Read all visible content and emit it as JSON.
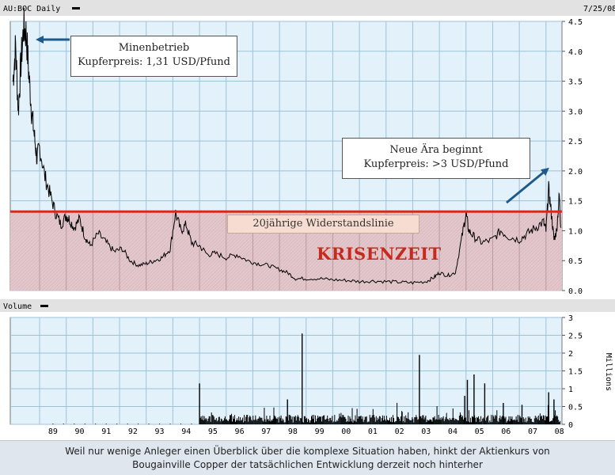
{
  "price_header": {
    "symbol": "AU:BOC Daily",
    "date": "7/25/08"
  },
  "volume_header": {
    "label": "Volume"
  },
  "chart_data": [
    {
      "type": "line",
      "ylim": [
        0,
        4.5
      ],
      "yticks": [
        "4.5",
        "4.0",
        "3.5",
        "3.0",
        "2.5",
        "2.0",
        "1.5",
        "1.0",
        "0.5",
        "0.0"
      ],
      "x": [
        1988.0,
        1988.1,
        1988.2,
        1988.3,
        1988.4,
        1988.5,
        1988.6,
        1988.7,
        1988.8,
        1988.9,
        1989.0,
        1989.2,
        1989.4,
        1989.6,
        1989.8,
        1990.0,
        1990.1,
        1990.3,
        1990.5,
        1990.7,
        1990.9,
        1991.2,
        1991.5,
        1991.8,
        1992.1,
        1992.4,
        1992.7,
        1993.0,
        1993.3,
        1993.6,
        1993.9,
        1994.1,
        1994.3,
        1994.5,
        1994.7,
        1995.0,
        1995.3,
        1995.6,
        1996.0,
        1996.4,
        1996.8,
        1997.2,
        1997.6,
        1998.0,
        1998.3,
        1998.6,
        1999.0,
        1999.5,
        2000.0,
        2000.5,
        2001.0,
        2001.5,
        2002.0,
        2002.5,
        2003.0,
        2003.5,
        2003.8,
        2004.0,
        2004.3,
        2004.6,
        2004.85,
        2005.0,
        2005.1,
        2005.3,
        2005.6,
        2006.0,
        2006.3,
        2006.6,
        2007.0,
        2007.3,
        2007.6,
        2007.9,
        2008.0,
        2008.1,
        2008.2,
        2008.3,
        2008.4,
        2008.5,
        2008.56
      ],
      "y": [
        3.5,
        4.1,
        3.0,
        3.8,
        4.4,
        4.3,
        3.6,
        3.0,
        2.6,
        2.2,
        2.4,
        1.9,
        1.6,
        1.3,
        1.1,
        1.25,
        1.2,
        1.05,
        1.2,
        0.9,
        0.75,
        0.95,
        0.8,
        0.65,
        0.7,
        0.5,
        0.42,
        0.45,
        0.5,
        0.55,
        0.7,
        1.3,
        1.0,
        1.1,
        0.8,
        0.75,
        0.6,
        0.62,
        0.55,
        0.6,
        0.5,
        0.45,
        0.42,
        0.35,
        0.3,
        0.2,
        0.2,
        0.2,
        0.18,
        0.17,
        0.15,
        0.16,
        0.15,
        0.14,
        0.13,
        0.15,
        0.22,
        0.3,
        0.25,
        0.3,
        0.9,
        1.3,
        1.0,
        0.9,
        0.8,
        0.85,
        1.0,
        0.9,
        0.85,
        0.95,
        1.05,
        1.15,
        1.0,
        1.7,
        1.3,
        0.85,
        1.0,
        1.6,
        1.05
      ]
    },
    {
      "type": "bar",
      "ylabel": "Millions",
      "ylim": [
        0,
        3
      ],
      "yticks": [
        "3",
        "2.5",
        "2",
        "1.5",
        "1",
        "0.5",
        "0"
      ],
      "x": [
        1995.0,
        1998.85,
        2003.25,
        2005.05,
        2005.3,
        2004.95,
        2005.7,
        2007.1,
        2008.1,
        2008.3,
        2006.4,
        2002.6,
        1998.3
      ],
      "values": [
        1.15,
        2.55,
        1.95,
        1.25,
        1.4,
        0.8,
        1.15,
        0.55,
        0.9,
        0.7,
        0.6,
        0.35,
        0.7
      ]
    }
  ],
  "x_axis": {
    "labels": [
      "89",
      "90",
      "91",
      "92",
      "93",
      "94",
      "95",
      "96",
      "97",
      "98",
      "99",
      "00",
      "01",
      "02",
      "03",
      "04",
      "05",
      "06",
      "07",
      "08"
    ]
  },
  "resistance": {
    "value": 1.32,
    "label": "20jährige Widerstandslinie"
  },
  "zone_label": "KRISENZEIT",
  "annotations": {
    "left": {
      "line1": "Minenbetrieb",
      "line2": "Kupferpreis: 1,31 USD/Pfund"
    },
    "right": {
      "line1": "Neue Ära beginnt",
      "line2": "Kupferpreis: >3 USD/Pfund"
    }
  },
  "caption": {
    "line1": "Weil nur wenige Anleger einen Überblick über die komplexe Situation haben, hinkt der Aktienkurs von",
    "line2": "Bougainville Copper der tatsächlichen Entwicklung derzeit noch hinterher"
  },
  "colors": {
    "plot_bg": "#e3f1fa",
    "grid": "#9ec3d8",
    "zone_fill": "#dfc2c6",
    "resistance_line": "#d42a24",
    "arrow": "#1f5a8c",
    "line": "#000000",
    "header_bg": "#e2e2e2"
  }
}
